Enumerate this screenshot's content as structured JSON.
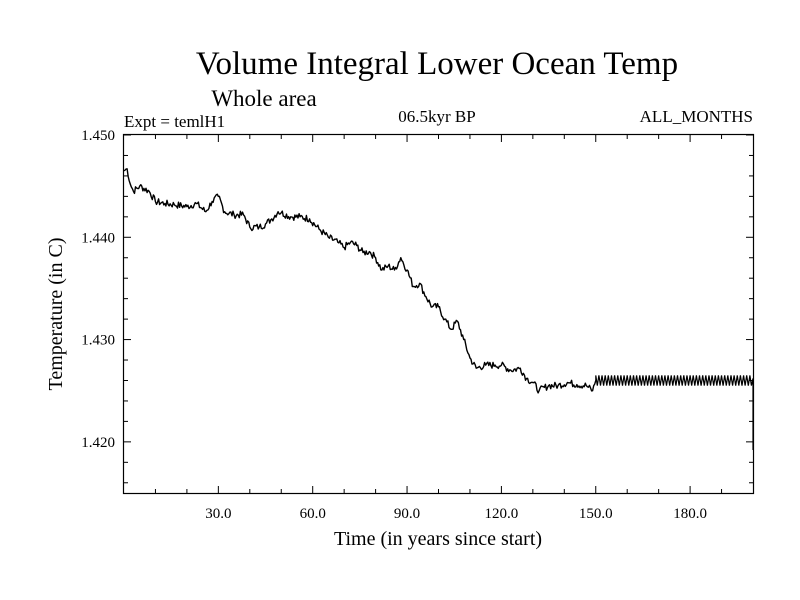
{
  "chart_data": {
    "type": "line",
    "title": "Volume Integral Lower Ocean Temp",
    "subtitle": "Whole area",
    "annotations": {
      "experiment": "Expt = temlH1",
      "period": "06.5kyr BP",
      "months": "ALL_MONTHS"
    },
    "xlabel": "Time (in years since start)",
    "ylabel": "Temperature (in C)",
    "xlim": [
      0,
      200
    ],
    "ylim": [
      1.415,
      1.45
    ],
    "x_ticks": [
      30,
      60,
      90,
      120,
      150,
      180
    ],
    "x_tick_labels": [
      "30.0",
      "60.0",
      "90.0",
      "120.0",
      "150.0",
      "180.0"
    ],
    "y_ticks": [
      1.42,
      1.43,
      1.44,
      1.45
    ],
    "y_tick_labels": [
      "1.420",
      "1.430",
      "1.440",
      "1.450"
    ],
    "grid": false,
    "series": [
      {
        "name": "Volume integral lower ocean temperature",
        "color": "#000000",
        "x": [
          0,
          1,
          2,
          3,
          5,
          8,
          10,
          13,
          16,
          20,
          23,
          26,
          28,
          30,
          32,
          35,
          38,
          40,
          43,
          45,
          47,
          49,
          50,
          53,
          56,
          59,
          62,
          65,
          68,
          70,
          72,
          74,
          76,
          78,
          80,
          82,
          84,
          86,
          88,
          90,
          92,
          94,
          96,
          98,
          100,
          102,
          104,
          106,
          108,
          110,
          112,
          115,
          118,
          120,
          123,
          126,
          128,
          130,
          132,
          135,
          138,
          141,
          144,
          147,
          149,
          150,
          155,
          160,
          170,
          180,
          190,
          199,
          200
        ],
        "y": [
          1.4465,
          1.4467,
          1.4452,
          1.4445,
          1.445,
          1.4445,
          1.4435,
          1.4433,
          1.4432,
          1.443,
          1.4433,
          1.4425,
          1.4435,
          1.444,
          1.4425,
          1.4422,
          1.4422,
          1.441,
          1.441,
          1.4413,
          1.4418,
          1.4425,
          1.4424,
          1.442,
          1.442,
          1.4418,
          1.4408,
          1.44,
          1.4395,
          1.439,
          1.4395,
          1.4392,
          1.4385,
          1.4386,
          1.438,
          1.4368,
          1.4372,
          1.4368,
          1.438,
          1.4368,
          1.4352,
          1.4355,
          1.4342,
          1.4332,
          1.4332,
          1.432,
          1.431,
          1.4318,
          1.43,
          1.4282,
          1.4272,
          1.4275,
          1.4275,
          1.4275,
          1.427,
          1.4272,
          1.4262,
          1.4258,
          1.425,
          1.4255,
          1.4255,
          1.4258,
          1.4256,
          1.4255,
          1.425,
          1.426,
          1.4262,
          1.4262,
          1.4262,
          1.4262,
          1.4262,
          1.4262,
          1.4192
        ]
      }
    ]
  }
}
